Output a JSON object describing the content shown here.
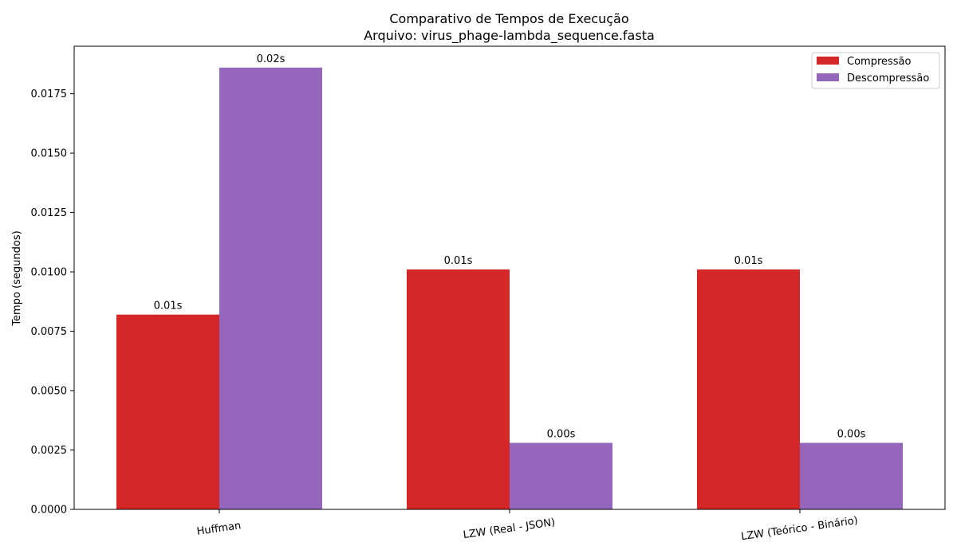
{
  "chart_data": {
    "type": "bar",
    "title": "Comparativo de Tempos de Execução",
    "subtitle": "Arquivo: virus_phage-lambda_sequence.fasta",
    "xlabel": "",
    "ylabel": "Tempo (segundos)",
    "ylim": [
      0,
      0.0195
    ],
    "yticks": [
      0.0,
      0.0025,
      0.005,
      0.0075,
      0.01,
      0.0125,
      0.015,
      0.0175
    ],
    "ytick_labels": [
      "0.0000",
      "0.0025",
      "0.0050",
      "0.0075",
      "0.0100",
      "0.0125",
      "0.0150",
      "0.0175"
    ],
    "categories": [
      "Huffman",
      "LZW (Real - JSON)",
      "LZW (Teórico - Binário)"
    ],
    "series": [
      {
        "name": "Compressão",
        "color": "#d62728",
        "values": [
          0.0082,
          0.0101,
          0.0101
        ],
        "labels": [
          "0.01s",
          "0.01s",
          "0.01s"
        ]
      },
      {
        "name": "Descompressão",
        "color": "#9467bd",
        "values": [
          0.0186,
          0.0028,
          0.0028
        ],
        "labels": [
          "0.02s",
          "0.00s",
          "0.00s"
        ]
      }
    ],
    "legend_position": "top-right",
    "grid": false
  }
}
